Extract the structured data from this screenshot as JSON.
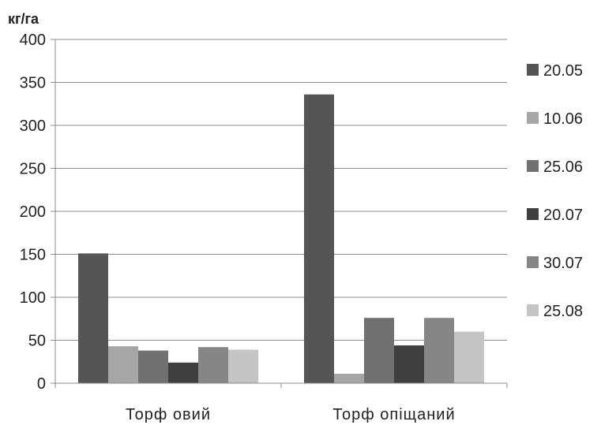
{
  "chart_data": {
    "type": "bar",
    "ylabel": "кг/га",
    "xlabel": "",
    "title": "",
    "ylim": [
      0,
      400
    ],
    "yticks": [
      "0",
      "50",
      "100",
      "150",
      "200",
      "250",
      "300",
      "350",
      "400"
    ],
    "categories": [
      "Торф овий",
      "Торф опіщаний"
    ],
    "series": [
      {
        "name": "20.05",
        "color": "#555555",
        "values": [
          151,
          336
        ]
      },
      {
        "name": "10.06",
        "color": "#a6a6a6",
        "values": [
          43,
          11
        ]
      },
      {
        "name": "25.06",
        "color": "#717171",
        "values": [
          38,
          76
        ]
      },
      {
        "name": "20.07",
        "color": "#3f3f3f",
        "values": [
          24,
          44
        ]
      },
      {
        "name": "30.07",
        "color": "#868686",
        "values": [
          42,
          76
        ]
      },
      {
        "name": "25.08",
        "color": "#c4c4c4",
        "values": [
          39,
          60
        ]
      }
    ],
    "grid": true,
    "legend": "right"
  }
}
